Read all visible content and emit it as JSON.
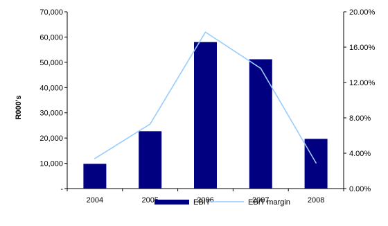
{
  "chart_data": {
    "type": "bar",
    "categories": [
      "2004",
      "2005",
      "2006",
      "2007",
      "2008"
    ],
    "series": [
      {
        "name": "EBIT",
        "type": "bar",
        "axis": "left",
        "values": [
          9800,
          22700,
          58000,
          51200,
          19700
        ],
        "color": "#000080"
      },
      {
        "name": "EBIT margin",
        "type": "line",
        "axis": "right",
        "values": [
          3.4,
          7.3,
          17.7,
          13.6,
          2.9
        ],
        "color": "#99CCFF"
      }
    ],
    "ylabel": "R000's",
    "ylim": [
      0,
      70000
    ],
    "yticks": [
      0,
      10000,
      20000,
      30000,
      40000,
      50000,
      60000,
      70000
    ],
    "ytick_labels": [
      "-",
      "10,000",
      "20,000",
      "30,000",
      "40,000",
      "50,000",
      "60,000",
      "70,000"
    ],
    "y2lim": [
      0,
      20
    ],
    "y2ticks": [
      0,
      4,
      8,
      12,
      16,
      20
    ],
    "y2tick_labels": [
      "0.00%",
      "4.00%",
      "8.00%",
      "12.00%",
      "16.00%",
      "20.00%"
    ],
    "grid": false,
    "legend_position": "bottom"
  }
}
